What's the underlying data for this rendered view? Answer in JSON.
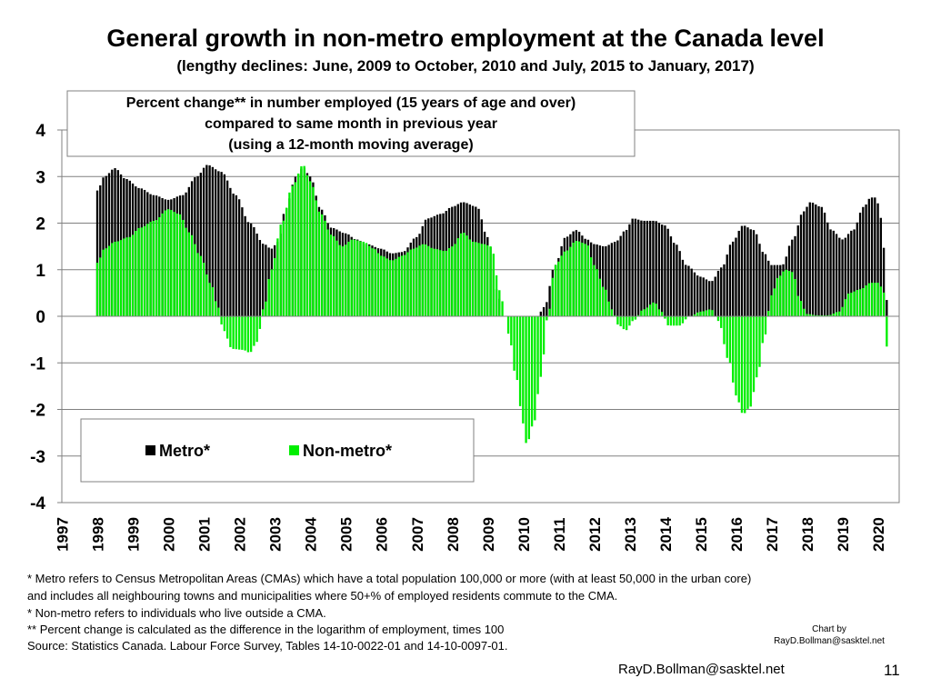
{
  "chart_data": {
    "type": "bar",
    "title": "General growth in non-metro employment at the Canada level",
    "subtitle": "(lengthy declines: June, 2009 to October, 2010 and July, 2015 to January, 2017)",
    "box_lines": [
      "Percent change** in number employed (15 years of age and over)",
      "compared to same month in previous year",
      "(using a 12-month moving average)"
    ],
    "ylim": [
      -4,
      4
    ],
    "y_ticks": [
      4,
      3,
      2,
      1,
      0,
      -1,
      -2,
      -3,
      -4
    ],
    "year_labels": [
      "1997",
      "1998",
      "1999",
      "2000",
      "2001",
      "2002",
      "2003",
      "2004",
      "2005",
      "2006",
      "2007",
      "2008",
      "2009",
      "2010",
      "2011",
      "2012",
      "2013",
      "2014",
      "2015",
      "2016",
      "2017",
      "2018",
      "2019",
      "2020"
    ],
    "legend": [
      "Metro*",
      "Non-metro*"
    ],
    "legend_position": "lower-left",
    "series": [
      {
        "name": "Metro*",
        "color": "#000000",
        "knots": [
          [
            1998.0,
            2.7
          ],
          [
            1998.2,
            3.0
          ],
          [
            1998.5,
            3.18
          ],
          [
            1998.8,
            2.95
          ],
          [
            1999.2,
            2.75
          ],
          [
            1999.6,
            2.6
          ],
          [
            2000.0,
            2.5
          ],
          [
            2000.4,
            2.6
          ],
          [
            2000.8,
            3.0
          ],
          [
            2001.1,
            3.25
          ],
          [
            2001.5,
            3.1
          ],
          [
            2001.9,
            2.6
          ],
          [
            2002.3,
            2.0
          ],
          [
            2002.7,
            1.55
          ],
          [
            2002.9,
            1.45
          ],
          [
            2003.1,
            1.6
          ],
          [
            2003.3,
            2.3
          ],
          [
            2003.6,
            3.0
          ],
          [
            2003.8,
            3.2
          ],
          [
            2004.0,
            3.0
          ],
          [
            2004.3,
            2.3
          ],
          [
            2004.6,
            1.9
          ],
          [
            2005.0,
            1.78
          ],
          [
            2005.3,
            1.65
          ],
          [
            2005.6,
            1.55
          ],
          [
            2006.0,
            1.45
          ],
          [
            2006.3,
            1.35
          ],
          [
            2006.6,
            1.38
          ],
          [
            2007.0,
            1.7
          ],
          [
            2007.3,
            2.1
          ],
          [
            2007.7,
            2.2
          ],
          [
            2008.0,
            2.35
          ],
          [
            2008.3,
            2.45
          ],
          [
            2008.7,
            2.35
          ],
          [
            2009.0,
            1.7
          ],
          [
            2009.3,
            0.5
          ],
          [
            2009.4,
            0.0
          ],
          [
            2010.0,
            0.0
          ],
          [
            2010.4,
            0.0
          ],
          [
            2010.6,
            0.2
          ],
          [
            2010.9,
            1.1
          ],
          [
            2011.2,
            1.7
          ],
          [
            2011.5,
            1.85
          ],
          [
            2011.8,
            1.65
          ],
          [
            2012.0,
            1.55
          ],
          [
            2012.3,
            1.5
          ],
          [
            2012.6,
            1.6
          ],
          [
            2012.9,
            1.85
          ],
          [
            2013.1,
            2.1
          ],
          [
            2013.4,
            2.05
          ],
          [
            2013.7,
            2.05
          ],
          [
            2014.0,
            1.95
          ],
          [
            2014.3,
            1.55
          ],
          [
            2014.6,
            1.1
          ],
          [
            2015.0,
            0.85
          ],
          [
            2015.3,
            0.75
          ],
          [
            2015.6,
            1.05
          ],
          [
            2015.9,
            1.6
          ],
          [
            2016.2,
            1.95
          ],
          [
            2016.5,
            1.85
          ],
          [
            2016.8,
            1.35
          ],
          [
            2017.0,
            1.1
          ],
          [
            2017.3,
            1.1
          ],
          [
            2017.6,
            1.65
          ],
          [
            2017.9,
            2.25
          ],
          [
            2018.1,
            2.45
          ],
          [
            2018.4,
            2.35
          ],
          [
            2018.7,
            1.85
          ],
          [
            2019.0,
            1.65
          ],
          [
            2019.3,
            1.85
          ],
          [
            2019.6,
            2.35
          ],
          [
            2019.8,
            2.55
          ],
          [
            2019.95,
            2.55
          ],
          [
            2020.05,
            2.3
          ],
          [
            2020.15,
            1.55
          ],
          [
            2020.25,
            0.35
          ]
        ]
      },
      {
        "name": "Non-metro*",
        "color": "#00ee00",
        "knots": [
          [
            1998.0,
            1.15
          ],
          [
            1998.2,
            1.45
          ],
          [
            1998.5,
            1.6
          ],
          [
            1998.9,
            1.7
          ],
          [
            1999.2,
            1.9
          ],
          [
            1999.6,
            2.05
          ],
          [
            2000.0,
            2.3
          ],
          [
            2000.3,
            2.2
          ],
          [
            2000.6,
            1.8
          ],
          [
            2000.9,
            1.3
          ],
          [
            2001.2,
            0.7
          ],
          [
            2001.4,
            0.2
          ],
          [
            2001.55,
            -0.3
          ],
          [
            2001.8,
            -0.7
          ],
          [
            2002.1,
            -0.72
          ],
          [
            2002.3,
            -0.78
          ],
          [
            2002.5,
            -0.55
          ],
          [
            2002.7,
            0.2
          ],
          [
            2002.9,
            1.0
          ],
          [
            2003.2,
            2.0
          ],
          [
            2003.5,
            2.8
          ],
          [
            2003.8,
            3.25
          ],
          [
            2004.0,
            2.9
          ],
          [
            2004.3,
            2.2
          ],
          [
            2004.6,
            1.75
          ],
          [
            2004.9,
            1.5
          ],
          [
            2005.2,
            1.65
          ],
          [
            2005.5,
            1.6
          ],
          [
            2005.8,
            1.45
          ],
          [
            2006.0,
            1.3
          ],
          [
            2006.3,
            1.2
          ],
          [
            2006.6,
            1.3
          ],
          [
            2006.9,
            1.45
          ],
          [
            2007.2,
            1.55
          ],
          [
            2007.5,
            1.45
          ],
          [
            2007.8,
            1.4
          ],
          [
            2008.0,
            1.5
          ],
          [
            2008.3,
            1.8
          ],
          [
            2008.6,
            1.6
          ],
          [
            2008.9,
            1.55
          ],
          [
            2009.1,
            1.5
          ],
          [
            2009.35,
            0.55
          ],
          [
            2009.5,
            0.0
          ],
          [
            2009.6,
            -0.4
          ],
          [
            2009.8,
            -1.3
          ],
          [
            2010.0,
            -2.3
          ],
          [
            2010.1,
            -2.75
          ],
          [
            2010.3,
            -2.3
          ],
          [
            2010.5,
            -1.3
          ],
          [
            2010.7,
            0.0
          ],
          [
            2010.9,
            1.1
          ],
          [
            2011.2,
            1.4
          ],
          [
            2011.5,
            1.62
          ],
          [
            2011.8,
            1.55
          ],
          [
            2012.0,
            1.1
          ],
          [
            2012.3,
            0.6
          ],
          [
            2012.5,
            0.15
          ],
          [
            2012.7,
            -0.2
          ],
          [
            2012.9,
            -0.3
          ],
          [
            2013.1,
            -0.1
          ],
          [
            2013.4,
            0.15
          ],
          [
            2013.7,
            0.3
          ],
          [
            2013.9,
            0.1
          ],
          [
            2014.1,
            -0.2
          ],
          [
            2014.4,
            -0.2
          ],
          [
            2014.7,
            0.0
          ],
          [
            2015.0,
            0.1
          ],
          [
            2015.3,
            0.15
          ],
          [
            2015.5,
            -0.1
          ],
          [
            2015.8,
            -0.95
          ],
          [
            2016.0,
            -1.7
          ],
          [
            2016.2,
            -2.1
          ],
          [
            2016.4,
            -1.95
          ],
          [
            2016.6,
            -1.3
          ],
          [
            2016.8,
            -0.45
          ],
          [
            2017.0,
            0.45
          ],
          [
            2017.2,
            0.85
          ],
          [
            2017.4,
            1.0
          ],
          [
            2017.6,
            0.95
          ],
          [
            2017.8,
            0.35
          ],
          [
            2018.0,
            0.05
          ],
          [
            2018.3,
            0.02
          ],
          [
            2018.6,
            0.02
          ],
          [
            2018.9,
            0.1
          ],
          [
            2019.2,
            0.5
          ],
          [
            2019.5,
            0.58
          ],
          [
            2019.8,
            0.72
          ],
          [
            2020.0,
            0.72
          ],
          [
            2020.15,
            0.58
          ],
          [
            2020.2,
            0.3
          ],
          [
            2020.25,
            -0.65
          ]
        ]
      }
    ],
    "x_domain": [
      1997.0,
      2020.6
    ],
    "x_range_months": [
      1998.0,
      2020.25
    ]
  },
  "footnotes": [
    "* Metro refers to Census Metropolitan Areas (CMAs) which have a total population 100,000 or more (with at least 50,000 in the urban core)",
    "and includes all neighbouring towns and municipalities where 50+% of employed residents commute to the CMA.",
    "* Non-metro refers to individuals who live outside a CMA.",
    "** Percent change is calculated as the difference in the logarithm of employment, times 100",
    "Source: Statistics Canada. Labour Force Survey, Tables 14-10-0022-01 and 14-10-0097-01."
  ],
  "credit": {
    "line1": "Chart by",
    "line2": "RayD.Bollman@sasktel.net"
  },
  "email": "RayD.Bollman@sasktel.net",
  "slide_number": "11"
}
